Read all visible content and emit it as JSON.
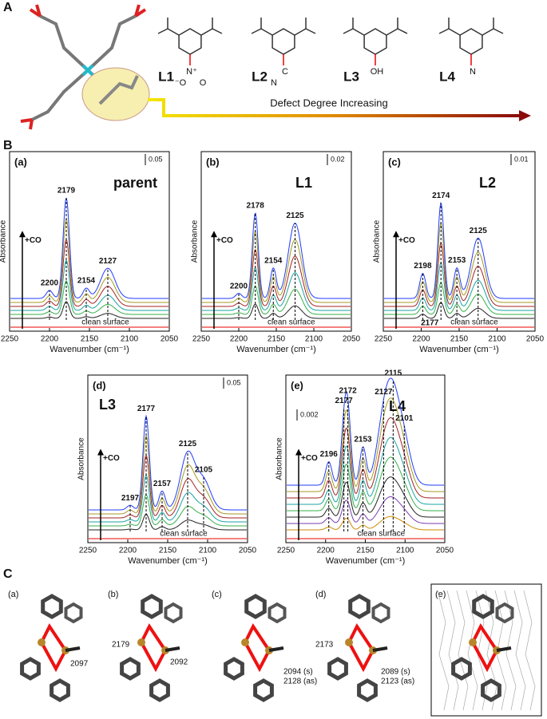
{
  "panel_a": {
    "label": "A",
    "ligands": [
      {
        "name": "L1",
        "groups": [
          "N⁺",
          "⁻O",
          "O"
        ]
      },
      {
        "name": "L2",
        "groups": [
          "C",
          "N"
        ]
      },
      {
        "name": "L3",
        "groups": [
          "OH"
        ]
      },
      {
        "name": "L4",
        "groups": [
          "N"
        ]
      }
    ],
    "arrow_text": "Defect Degree Increasing"
  },
  "panel_b": {
    "label": "B",
    "xlabel": "Wavenumber (cm⁻¹)",
    "ylabel": "Absorbance",
    "co_label": "+CO",
    "baseline_label": "clean surface",
    "xticks": [
      2250,
      2200,
      2150,
      2100,
      2050
    ],
    "plots": [
      {
        "tag": "(a)",
        "name": "parent",
        "scale": 0.05,
        "peaks": [
          2200,
          2179,
          2154,
          2127
        ],
        "peaks_below": []
      },
      {
        "tag": "(b)",
        "name": "L1",
        "scale": 0.02,
        "peaks": [
          2200,
          2178,
          2154,
          2125
        ],
        "peaks_below": []
      },
      {
        "tag": "(c)",
        "name": "L2",
        "scale": 0.01,
        "peaks": [
          2198,
          2174,
          2153,
          2125
        ],
        "peaks_below": [
          2177
        ]
      },
      {
        "tag": "(d)",
        "name": "L3",
        "scale": 0.05,
        "peaks": [
          2197,
          2177,
          2157,
          2125,
          2105
        ],
        "peaks_below": []
      },
      {
        "tag": "(e)",
        "name": "L4",
        "scale": 0.002,
        "peaks": [
          2196,
          2177,
          2172,
          2153,
          2127,
          2115,
          2101
        ],
        "peaks_below": []
      }
    ]
  },
  "panel_c": {
    "label": "C",
    "structures": [
      {
        "tag": "(a)",
        "labels": [
          "2097"
        ]
      },
      {
        "tag": "(b)",
        "labels": [
          "2179",
          "2092"
        ]
      },
      {
        "tag": "(c)",
        "labels": [
          "2094 (s)",
          "2128 (as)"
        ]
      },
      {
        "tag": "(d)",
        "labels": [
          "2173",
          "2089 (s)",
          "2123 (as)"
        ]
      },
      {
        "tag": "(e)",
        "labels": []
      }
    ]
  }
}
